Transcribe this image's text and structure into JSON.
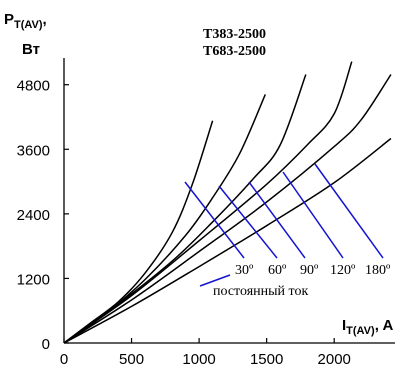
{
  "chart_data": {
    "type": "line",
    "title": [
      "T383-2500",
      "T683-2500"
    ],
    "ylabel": {
      "main": "P",
      "sub": "T(AV)",
      "comma": ",",
      "unit": "Вт"
    },
    "xlabel": {
      "main": "I",
      "sub": "T(AV)",
      "unit": ", A"
    },
    "xlim": [
      0,
      2450
    ],
    "ylim": [
      0,
      6300
    ],
    "xticks": [
      {
        "value": 0,
        "label": "0"
      },
      {
        "value": 500,
        "label": "500"
      },
      {
        "value": 1000,
        "label": "1000"
      },
      {
        "value": 1500,
        "label": "1500"
      },
      {
        "value": 2000,
        "label": "2000"
      }
    ],
    "yticks": [
      {
        "value": 0,
        "label": "0"
      },
      {
        "value": 1200,
        "label": "1200"
      },
      {
        "value": 2400,
        "label": "2400"
      },
      {
        "value": 3600,
        "label": "3600"
      },
      {
        "value": 4800,
        "label": "4800"
      }
    ],
    "series": [
      {
        "name": "30º",
        "points": [
          [
            0,
            0
          ],
          [
            200,
            380
          ],
          [
            400,
            760
          ],
          [
            600,
            1300
          ],
          [
            800,
            2050
          ],
          [
            950,
            2950
          ],
          [
            1100,
            4130
          ]
        ]
      },
      {
        "name": "60º",
        "points": [
          [
            0,
            0
          ],
          [
            300,
            530
          ],
          [
            600,
            1180
          ],
          [
            900,
            2000
          ],
          [
            1100,
            2700
          ],
          [
            1300,
            3520
          ],
          [
            1490,
            4620
          ]
        ]
      },
      {
        "name": "90º",
        "points": [
          [
            0,
            0
          ],
          [
            400,
            720
          ],
          [
            800,
            1520
          ],
          [
            1100,
            2250
          ],
          [
            1400,
            3050
          ],
          [
            1600,
            3680
          ],
          [
            1790,
            4990
          ]
        ]
      },
      {
        "name": "120º",
        "points": [
          [
            0,
            0
          ],
          [
            500,
            880
          ],
          [
            1000,
            1900
          ],
          [
            1500,
            2950
          ],
          [
            1800,
            3680
          ],
          [
            2000,
            4260
          ],
          [
            2130,
            5230
          ]
        ]
      },
      {
        "name": "180º",
        "points": [
          [
            0,
            0
          ],
          [
            500,
            800
          ],
          [
            1000,
            1700
          ],
          [
            1500,
            2620
          ],
          [
            2000,
            3650
          ],
          [
            2200,
            4150
          ],
          [
            2420,
            4990
          ]
        ]
      },
      {
        "name": "постоянный ток",
        "points": [
          [
            0,
            0
          ],
          [
            500,
            680
          ],
          [
            1000,
            1420
          ],
          [
            1500,
            2180
          ],
          [
            2000,
            2980
          ],
          [
            2420,
            3800
          ]
        ]
      }
    ],
    "angle_labels": [
      "30º",
      "60º",
      "90º",
      "120º",
      "180º"
    ],
    "dc_label": "постоянный ток",
    "colors": {
      "curves": "#000000",
      "indicators": "#1414d2",
      "axes": "#000000",
      "text": "#000000"
    },
    "grid": false,
    "legend": "none"
  }
}
